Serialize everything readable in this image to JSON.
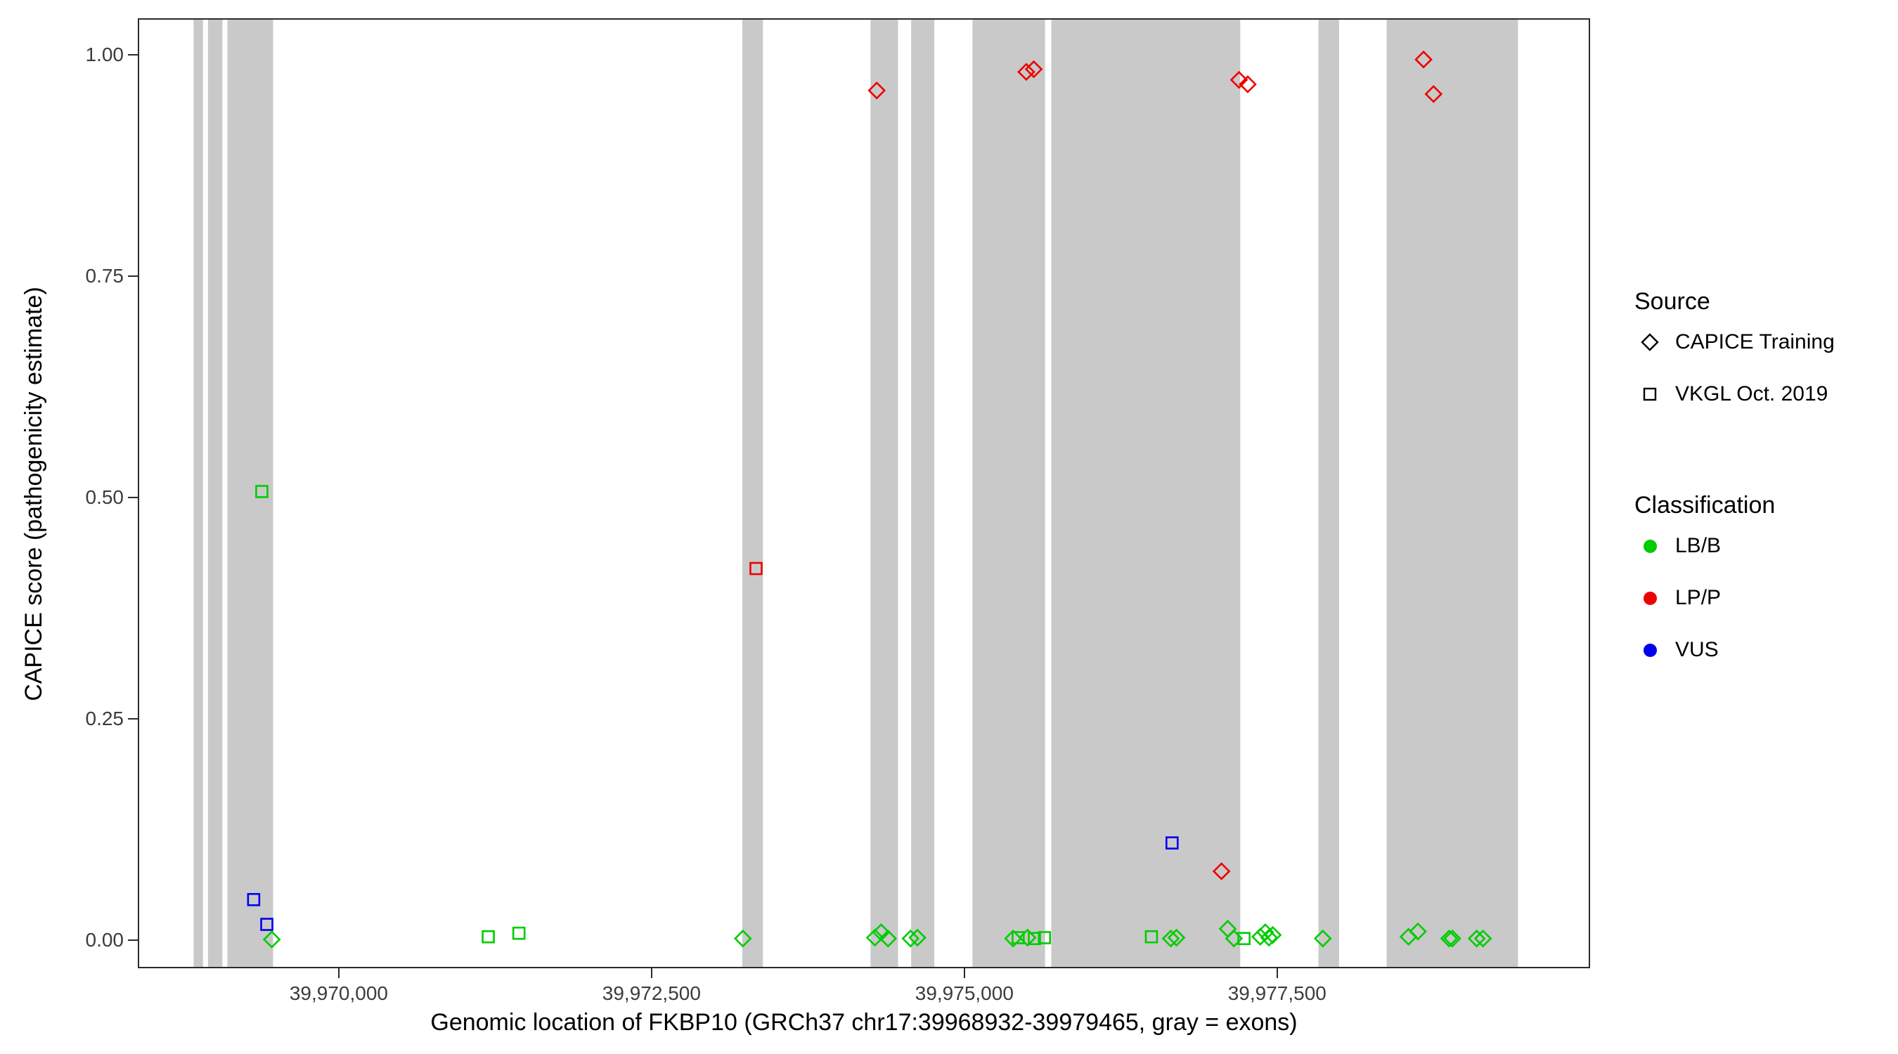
{
  "chart_data": {
    "type": "scatter",
    "title": "",
    "xlabel": "Genomic location of FKBP10 (GRCh37 chr17:39968932-39979465, gray = exons)",
    "ylabel": "CAPICE score (pathogenicity estimate)",
    "xlim": [
      39968405,
      39979990
    ],
    "ylim": [
      -0.03,
      1.04
    ],
    "grid": "off",
    "legend_position": "right",
    "xticks": [
      {
        "value": 39970000,
        "label": "39,970,000"
      },
      {
        "value": 39972500,
        "label": "39,972,500"
      },
      {
        "value": 39975000,
        "label": "39,975,000"
      },
      {
        "value": 39977500,
        "label": "39,977,500"
      }
    ],
    "yticks": [
      {
        "value": 0.0,
        "label": "0.00"
      },
      {
        "value": 0.25,
        "label": "0.25"
      },
      {
        "value": 0.5,
        "label": "0.50"
      },
      {
        "value": 0.75,
        "label": "0.75"
      },
      {
        "value": 1.0,
        "label": "1.00"
      }
    ],
    "exon_color": "#c9c9c9",
    "exons": [
      [
        39968840,
        39968915
      ],
      [
        39968955,
        39969070
      ],
      [
        39969110,
        39969475
      ],
      [
        39973225,
        39973390
      ],
      [
        39974250,
        39974470
      ],
      [
        39974575,
        39974760
      ],
      [
        39975065,
        39975645
      ],
      [
        39975695,
        39977205
      ],
      [
        39977830,
        39977995
      ],
      [
        39978375,
        39979425
      ]
    ],
    "classification_colors": {
      "LB/B": "#00CC00",
      "LP/P": "#EE0000",
      "VUS": "#0000EE"
    },
    "source_shapes": {
      "CAPICE Training": "diamond",
      "VKGL Oct. 2019": "square"
    },
    "points": [
      {
        "x": 39969320,
        "y": 0.046,
        "cls": "VUS",
        "src": "VKGL Oct. 2019"
      },
      {
        "x": 39969385,
        "y": 0.507,
        "cls": "LB/B",
        "src": "VKGL Oct. 2019"
      },
      {
        "x": 39969425,
        "y": 0.018,
        "cls": "VUS",
        "src": "VKGL Oct. 2019"
      },
      {
        "x": 39969465,
        "y": 0.001,
        "cls": "LB/B",
        "src": "CAPICE Training"
      },
      {
        "x": 39971195,
        "y": 0.004,
        "cls": "LB/B",
        "src": "VKGL Oct. 2019"
      },
      {
        "x": 39971440,
        "y": 0.008,
        "cls": "LB/B",
        "src": "VKGL Oct. 2019"
      },
      {
        "x": 39973230,
        "y": 0.002,
        "cls": "LB/B",
        "src": "CAPICE Training"
      },
      {
        "x": 39973335,
        "y": 0.42,
        "cls": "LP/P",
        "src": "VKGL Oct. 2019"
      },
      {
        "x": 39974285,
        "y": 0.003,
        "cls": "LB/B",
        "src": "CAPICE Training"
      },
      {
        "x": 39974300,
        "y": 0.96,
        "cls": "LP/P",
        "src": "CAPICE Training"
      },
      {
        "x": 39974335,
        "y": 0.009,
        "cls": "LB/B",
        "src": "CAPICE Training"
      },
      {
        "x": 39974390,
        "y": 0.002,
        "cls": "LB/B",
        "src": "CAPICE Training"
      },
      {
        "x": 39974570,
        "y": 0.002,
        "cls": "LB/B",
        "src": "CAPICE Training"
      },
      {
        "x": 39974625,
        "y": 0.003,
        "cls": "LB/B",
        "src": "CAPICE Training"
      },
      {
        "x": 39975390,
        "y": 0.002,
        "cls": "LB/B",
        "src": "CAPICE Training"
      },
      {
        "x": 39975430,
        "y": 0.003,
        "cls": "LB/B",
        "src": "VKGL Oct. 2019"
      },
      {
        "x": 39975495,
        "y": 0.981,
        "cls": "LP/P",
        "src": "CAPICE Training"
      },
      {
        "x": 39975505,
        "y": 0.003,
        "cls": "LB/B",
        "src": "CAPICE Training"
      },
      {
        "x": 39975555,
        "y": 0.984,
        "cls": "LP/P",
        "src": "CAPICE Training"
      },
      {
        "x": 39975560,
        "y": 0.002,
        "cls": "LB/B",
        "src": "VKGL Oct. 2019"
      },
      {
        "x": 39975640,
        "y": 0.003,
        "cls": "LB/B",
        "src": "VKGL Oct. 2019"
      },
      {
        "x": 39976495,
        "y": 0.004,
        "cls": "LB/B",
        "src": "VKGL Oct. 2019"
      },
      {
        "x": 39976650,
        "y": 0.002,
        "cls": "LB/B",
        "src": "CAPICE Training"
      },
      {
        "x": 39976660,
        "y": 0.11,
        "cls": "VUS",
        "src": "VKGL Oct. 2019"
      },
      {
        "x": 39976695,
        "y": 0.003,
        "cls": "LB/B",
        "src": "CAPICE Training"
      },
      {
        "x": 39977055,
        "y": 0.078,
        "cls": "LP/P",
        "src": "CAPICE Training"
      },
      {
        "x": 39977105,
        "y": 0.013,
        "cls": "LB/B",
        "src": "CAPICE Training"
      },
      {
        "x": 39977155,
        "y": 0.002,
        "cls": "LB/B",
        "src": "CAPICE Training"
      },
      {
        "x": 39977195,
        "y": 0.972,
        "cls": "LP/P",
        "src": "CAPICE Training"
      },
      {
        "x": 39977235,
        "y": 0.002,
        "cls": "LB/B",
        "src": "VKGL Oct. 2019"
      },
      {
        "x": 39977265,
        "y": 0.967,
        "cls": "LP/P",
        "src": "CAPICE Training"
      },
      {
        "x": 39977365,
        "y": 0.004,
        "cls": "LB/B",
        "src": "CAPICE Training"
      },
      {
        "x": 39977405,
        "y": 0.009,
        "cls": "LB/B",
        "src": "CAPICE Training"
      },
      {
        "x": 39977435,
        "y": 0.003,
        "cls": "LB/B",
        "src": "CAPICE Training"
      },
      {
        "x": 39977465,
        "y": 0.006,
        "cls": "LB/B",
        "src": "CAPICE Training"
      },
      {
        "x": 39977865,
        "y": 0.002,
        "cls": "LB/B",
        "src": "CAPICE Training"
      },
      {
        "x": 39978550,
        "y": 0.004,
        "cls": "LB/B",
        "src": "CAPICE Training"
      },
      {
        "x": 39978625,
        "y": 0.01,
        "cls": "LB/B",
        "src": "CAPICE Training"
      },
      {
        "x": 39978670,
        "y": 0.995,
        "cls": "LP/P",
        "src": "CAPICE Training"
      },
      {
        "x": 39978750,
        "y": 0.956,
        "cls": "LP/P",
        "src": "CAPICE Training"
      },
      {
        "x": 39978875,
        "y": 0.002,
        "cls": "LB/B",
        "src": "CAPICE Training"
      },
      {
        "x": 39978900,
        "y": 0.002,
        "cls": "LB/B",
        "src": "CAPICE Training"
      },
      {
        "x": 39979095,
        "y": 0.002,
        "cls": "LB/B",
        "src": "CAPICE Training"
      },
      {
        "x": 39979145,
        "y": 0.002,
        "cls": "LB/B",
        "src": "CAPICE Training"
      }
    ]
  },
  "legend": {
    "source": {
      "title": "Source",
      "items": [
        {
          "label": "CAPICE Training",
          "shape": "diamond"
        },
        {
          "label": "VKGL Oct. 2019",
          "shape": "square"
        }
      ]
    },
    "classification": {
      "title": "Classification",
      "items": [
        {
          "label": "LB/B",
          "color": "#00CC00"
        },
        {
          "label": "LP/P",
          "color": "#EE0000"
        },
        {
          "label": "VUS",
          "color": "#0000EE"
        }
      ]
    }
  }
}
